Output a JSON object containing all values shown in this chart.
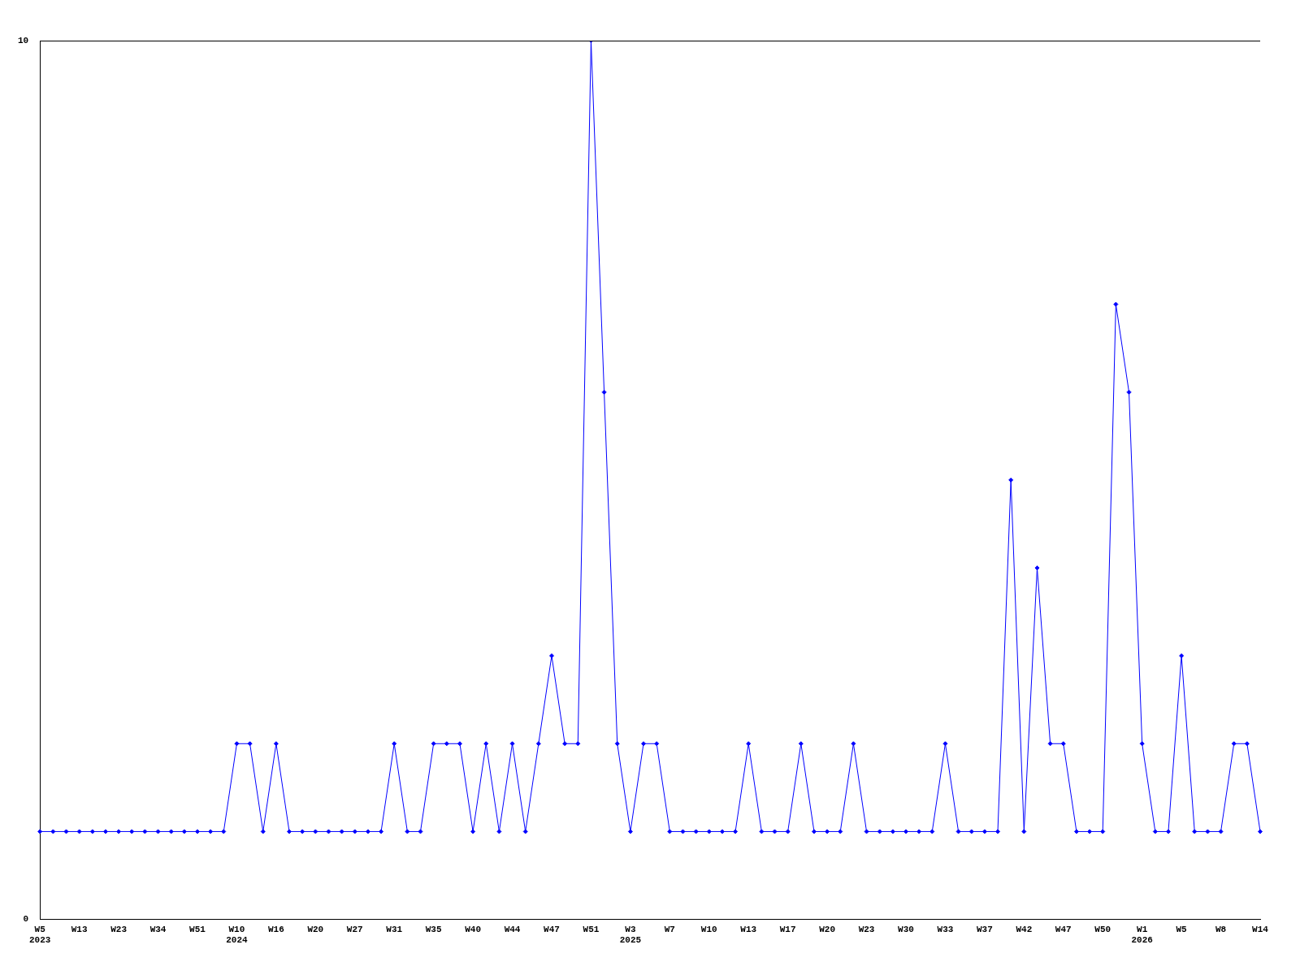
{
  "chart_data": {
    "type": "line",
    "categories": [
      "W5\n2023",
      null,
      null,
      "W13",
      null,
      null,
      "W23",
      null,
      null,
      "W34",
      null,
      null,
      "W51",
      null,
      null,
      "W10\n2024",
      null,
      null,
      "W16",
      null,
      null,
      "W20",
      null,
      null,
      "W27",
      null,
      null,
      "W31",
      null,
      null,
      "W35",
      null,
      null,
      "W40",
      null,
      null,
      "W44",
      null,
      null,
      "W47",
      null,
      null,
      "W51",
      null,
      null,
      "W3\n2025",
      null,
      null,
      "W7",
      null,
      null,
      "W10",
      null,
      null,
      "W13",
      null,
      null,
      "W17",
      null,
      null,
      "W20",
      null,
      null,
      "W23",
      null,
      null,
      "W30",
      null,
      null,
      "W33",
      null,
      null,
      "W37",
      null,
      null,
      "W42",
      null,
      null,
      "W47",
      null,
      null,
      "W50",
      null,
      null,
      "W1\n2026",
      null,
      null,
      "W5",
      null,
      null,
      "W8",
      null,
      null,
      "W14"
    ],
    "series": [
      {
        "color": "#0000ff",
        "values": [
          1,
          1,
          1,
          1,
          1,
          1,
          1,
          1,
          1,
          1,
          1,
          1,
          1,
          1,
          1,
          2,
          2,
          1,
          2,
          1,
          1,
          1,
          1,
          1,
          1,
          1,
          1,
          2,
          1,
          1,
          2,
          2,
          2,
          1,
          2,
          1,
          2,
          1,
          2,
          3,
          2,
          2,
          10,
          6,
          2,
          1,
          2,
          2,
          1,
          1,
          1,
          1,
          1,
          1,
          2,
          1,
          1,
          1,
          2,
          1,
          1,
          1,
          2,
          1,
          1,
          1,
          1,
          1,
          1,
          2,
          1,
          1,
          1,
          1,
          5,
          1,
          4,
          2,
          2,
          1,
          1,
          1,
          7,
          6,
          2,
          1,
          1,
          3,
          1,
          1,
          1,
          2,
          2,
          1
        ]
      }
    ],
    "ylim": [
      0,
      10
    ],
    "yticks": [
      0,
      10
    ],
    "grid": false,
    "legend": false,
    "marker": "diamond",
    "line_style": "solid"
  }
}
